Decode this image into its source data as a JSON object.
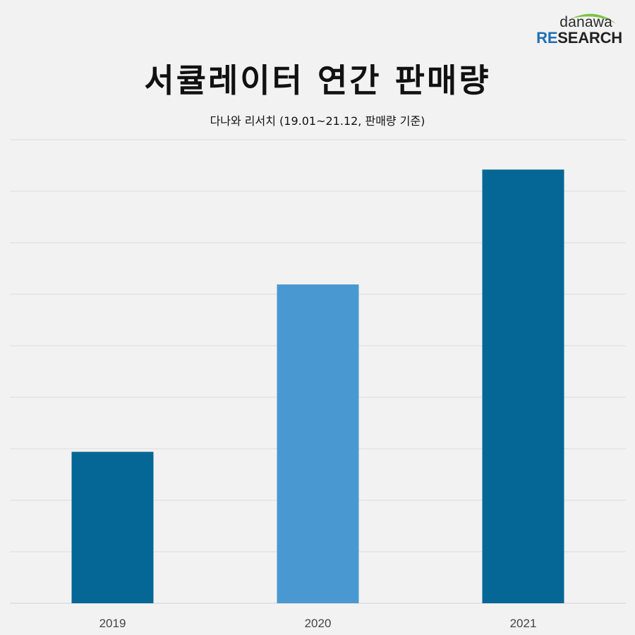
{
  "logo": {
    "top": "danawa",
    "research_prefix": "RE",
    "research_suffix": "SEARCH"
  },
  "colors": {
    "bar_dark": "#046796",
    "bar_light": "#4a98d1",
    "grid": "#dcdcdc",
    "background": "#f2f2f2"
  },
  "chart_data": {
    "type": "bar",
    "title": "서큘레이터 연간 판매량",
    "subtitle": "다나와 리서치 (19.01~21.12, 판매량 기준)",
    "categories": [
      "2019",
      "2020",
      "2021"
    ],
    "values": [
      29.4,
      61.9,
      84.2
    ],
    "value_unit": "index (y-axis unlabeled, 0-90)",
    "ylim": [
      0,
      90
    ],
    "yticks": [
      0,
      10,
      20,
      30,
      40,
      50,
      60,
      70,
      80,
      90
    ],
    "bar_colors": [
      "#046796",
      "#4a98d1",
      "#046796"
    ],
    "grid": true,
    "legend": "none",
    "xlabel": "",
    "ylabel": ""
  }
}
